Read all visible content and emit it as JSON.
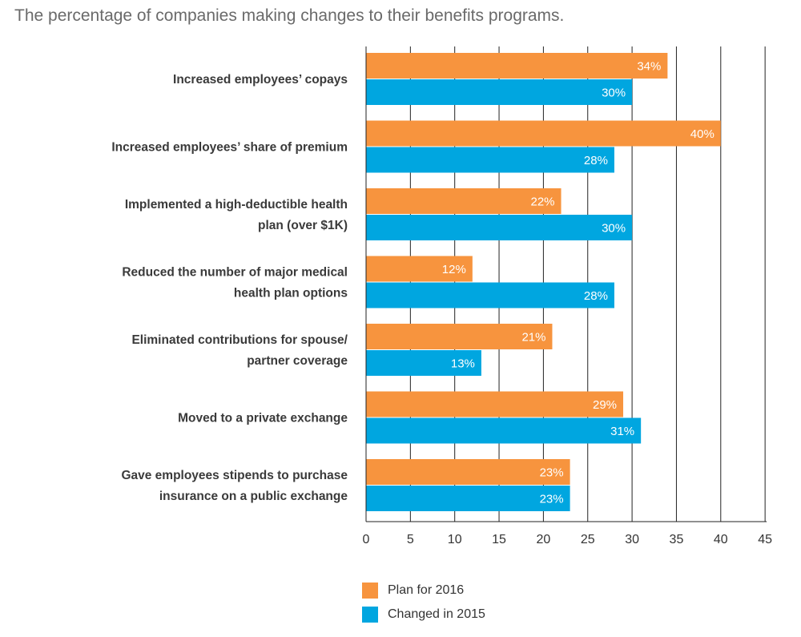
{
  "chart_data": {
    "type": "bar",
    "orientation": "horizontal",
    "title": "The percentage of companies making changes to their benefits programs.",
    "categories": [
      [
        "Increased employees’ copays"
      ],
      [
        "Increased employees’ share of premium"
      ],
      [
        "Implemented a high-deductible health",
        "plan (over $1K)"
      ],
      [
        "Reduced the number of major medical",
        "health plan options"
      ],
      [
        "Eliminated contributions for spouse/",
        "partner coverage"
      ],
      [
        "Moved to a private exchange"
      ],
      [
        "Gave employees stipends to purchase",
        "insurance on a public exchange"
      ]
    ],
    "series": [
      {
        "name": "Plan for 2016",
        "color": "#F7943E",
        "values": [
          34,
          40,
          22,
          12,
          21,
          29,
          23
        ],
        "labels": [
          "34%",
          "40%",
          "22%",
          "12%",
          "21%",
          "29%",
          "23%"
        ]
      },
      {
        "name": "Changed in  2015",
        "color": "#00A6E0",
        "values": [
          30,
          28,
          30,
          28,
          13,
          31,
          23
        ],
        "labels": [
          "30%",
          "28%",
          "30%",
          "28%",
          "13%",
          "31%",
          "23%"
        ]
      }
    ],
    "xlim": [
      0,
      45
    ],
    "xticks": [
      "0",
      "5",
      "10",
      "15",
      "20",
      "25",
      "30",
      "35",
      "40",
      "45"
    ],
    "grid": true,
    "legend_position": "bottom"
  }
}
